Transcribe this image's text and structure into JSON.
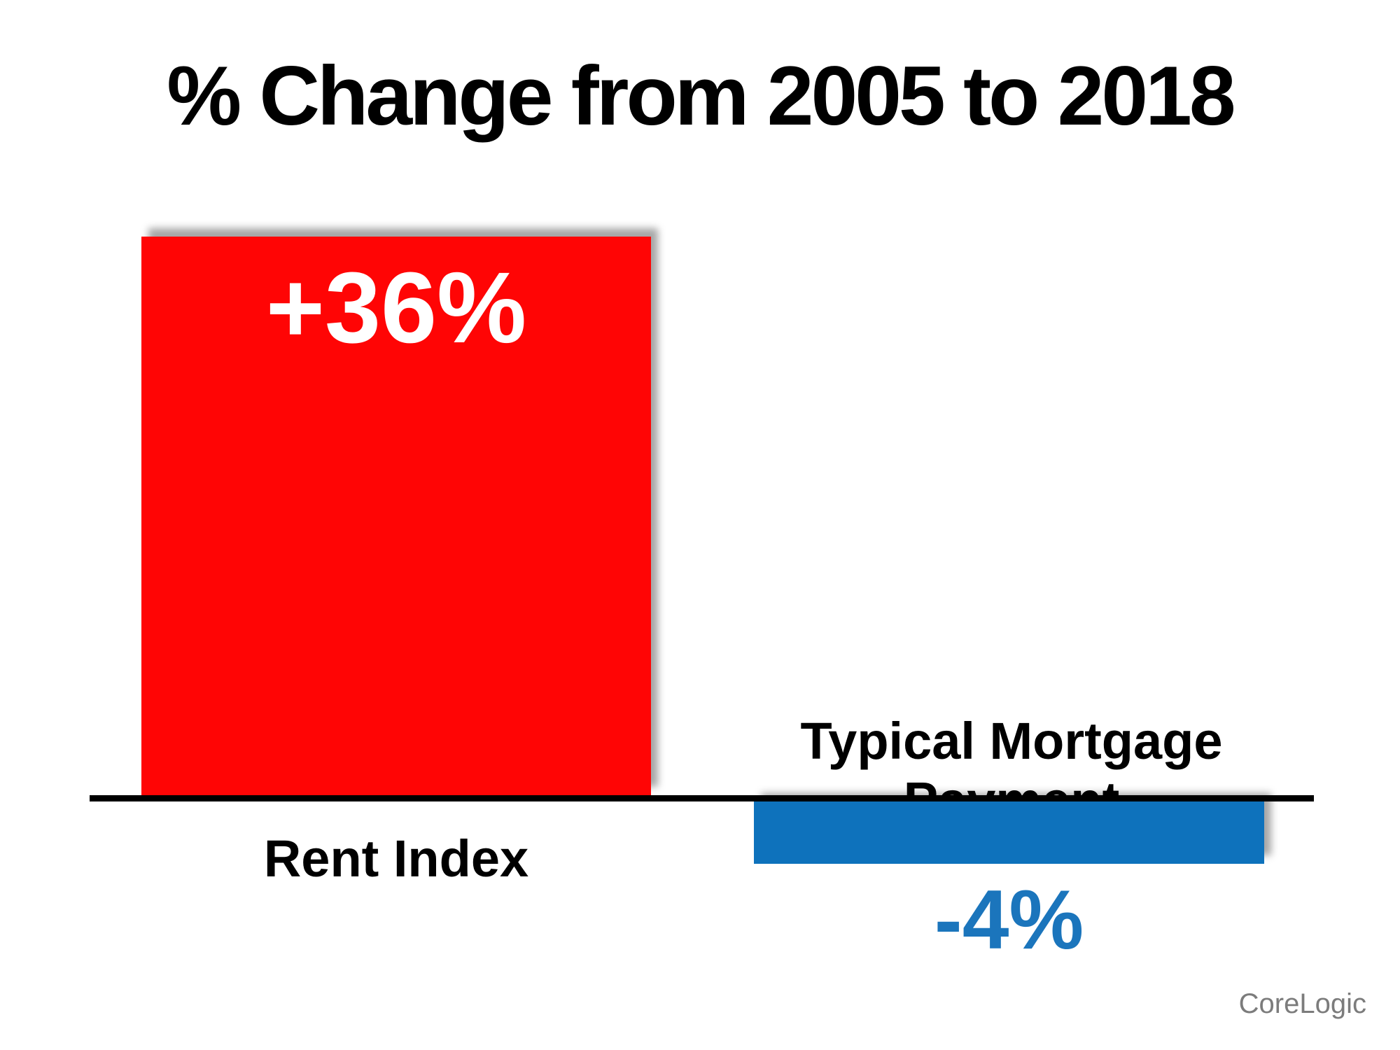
{
  "chart_data": {
    "type": "bar",
    "title": "% Change from 2005 to 2018",
    "categories": [
      "Rent Index",
      "Typical Mortgage Payment"
    ],
    "values": [
      36,
      -4
    ],
    "bar_labels": [
      "+36%",
      "-4%"
    ],
    "series_colors": [
      "#ff0505",
      "#0e72bc"
    ],
    "value_label_colors": [
      "#ffffff",
      "#1b75bc"
    ],
    "axis_color": "#000000",
    "background_color": "#ffffff",
    "ylim": [
      -4,
      36
    ],
    "grid": false,
    "legend": false,
    "source": "CoreLogic"
  }
}
